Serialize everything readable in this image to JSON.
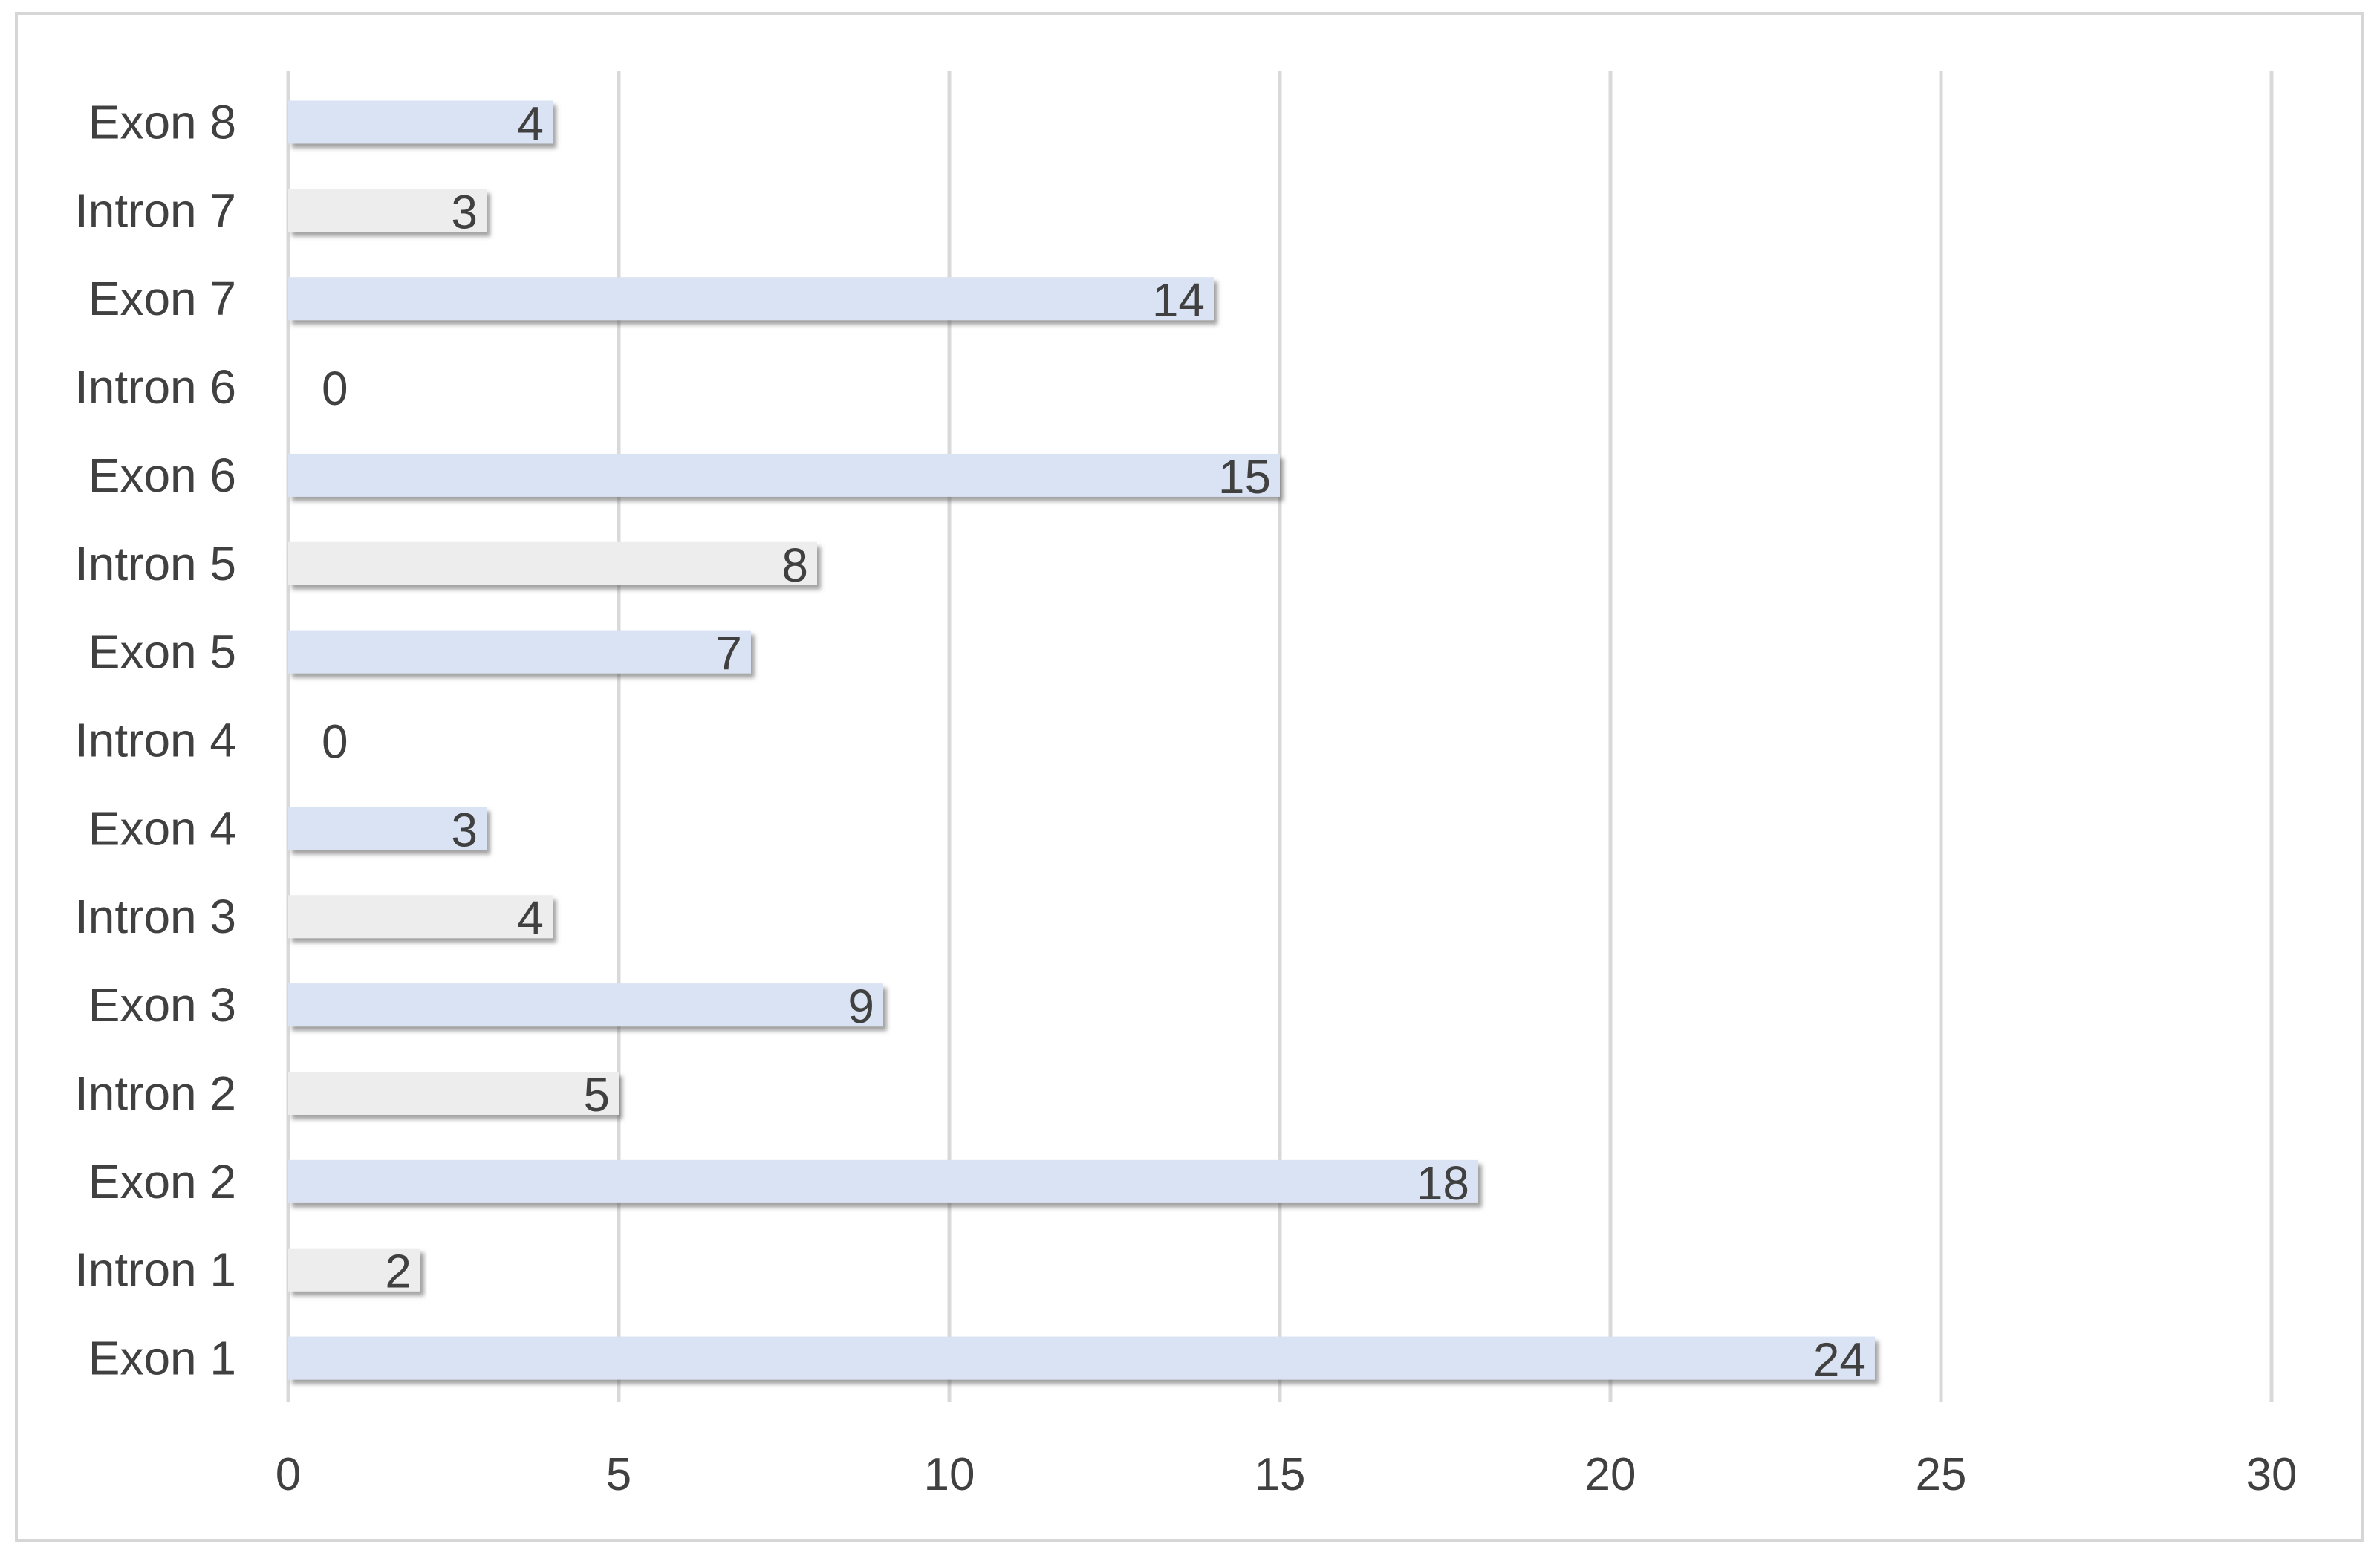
{
  "chart_data": {
    "type": "bar",
    "orientation": "horizontal",
    "categories": [
      "Exon 1",
      "Intron 1",
      "Exon 2",
      "Intron 2",
      "Exon 3",
      "Intron 3",
      "Exon 4",
      "Intron 4",
      "Exon 5",
      "Intron 5",
      "Exon 6",
      "Intron 6",
      "Exon 7",
      "Intron 7",
      "Exon 8"
    ],
    "values": [
      24,
      2,
      18,
      5,
      9,
      4,
      3,
      0,
      7,
      8,
      15,
      0,
      14,
      3,
      4
    ],
    "data_labels": [
      "24",
      "2",
      "18",
      "5",
      "9",
      "4",
      "3",
      "0",
      "7",
      "8",
      "15",
      "0",
      "14",
      "3",
      "4"
    ],
    "xlim": [
      0,
      30
    ],
    "x_ticks": [
      0,
      5,
      10,
      15,
      20,
      25,
      30
    ],
    "x_tick_labels": [
      "0",
      "5",
      "10",
      "15",
      "20",
      "25",
      "30"
    ],
    "grid": true,
    "legend": "none",
    "colors": {
      "exon": "#dae3f3",
      "intron": "#ededed",
      "gridline": "#d9d9d9",
      "text": "#404040",
      "shadow": "#7f7f7f"
    }
  }
}
